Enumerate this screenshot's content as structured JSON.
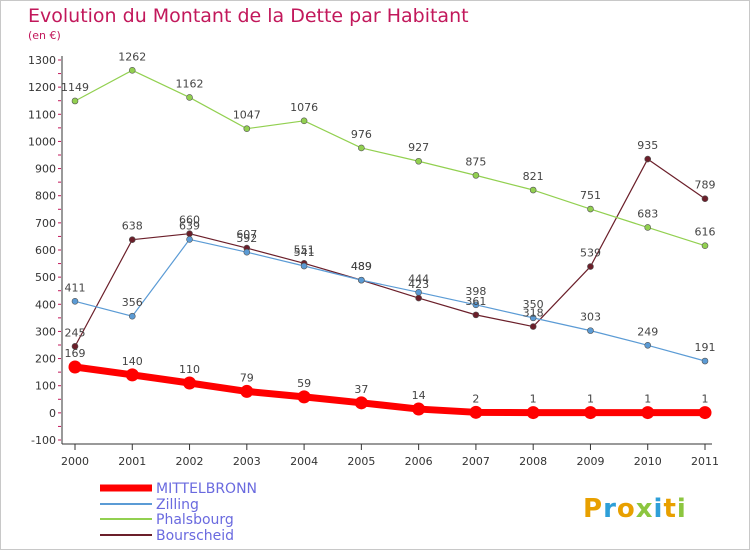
{
  "chart_data": {
    "type": "line",
    "title": "Evolution du Montant de la Dette par Habitant",
    "subtitle": "(en €)",
    "xlabel": "",
    "ylabel": "",
    "x": [
      2000,
      2001,
      2002,
      2003,
      2004,
      2005,
      2006,
      2007,
      2008,
      2009,
      2010,
      2011
    ],
    "ylim": [
      -100,
      1300
    ],
    "yticks": [
      -100,
      0,
      100,
      200,
      300,
      400,
      500,
      600,
      700,
      800,
      900,
      1000,
      1100,
      1200,
      1300
    ],
    "grid": false,
    "legend_position": "bottom-left",
    "series": [
      {
        "name": "MITTELBRONN",
        "color": "#ff0000",
        "values": [
          169,
          140,
          110,
          79,
          59,
          37,
          14,
          2,
          1,
          1,
          1,
          1
        ]
      },
      {
        "name": "Zilling",
        "color": "#5b9bd5",
        "values": [
          411,
          356,
          639,
          592,
          541,
          489,
          444,
          398,
          350,
          303,
          249,
          191
        ]
      },
      {
        "name": "Phalsbourg",
        "color": "#92d050",
        "values": [
          1149,
          1262,
          1162,
          1047,
          1076,
          976,
          927,
          875,
          821,
          751,
          683,
          616
        ]
      },
      {
        "name": "Bourscheid",
        "color": "#6b1f2a",
        "values": [
          245,
          638,
          660,
          607,
          551,
          489,
          423,
          361,
          318,
          539,
          935,
          789
        ]
      }
    ]
  },
  "branding": {
    "logo_text": "Proxiti"
  }
}
